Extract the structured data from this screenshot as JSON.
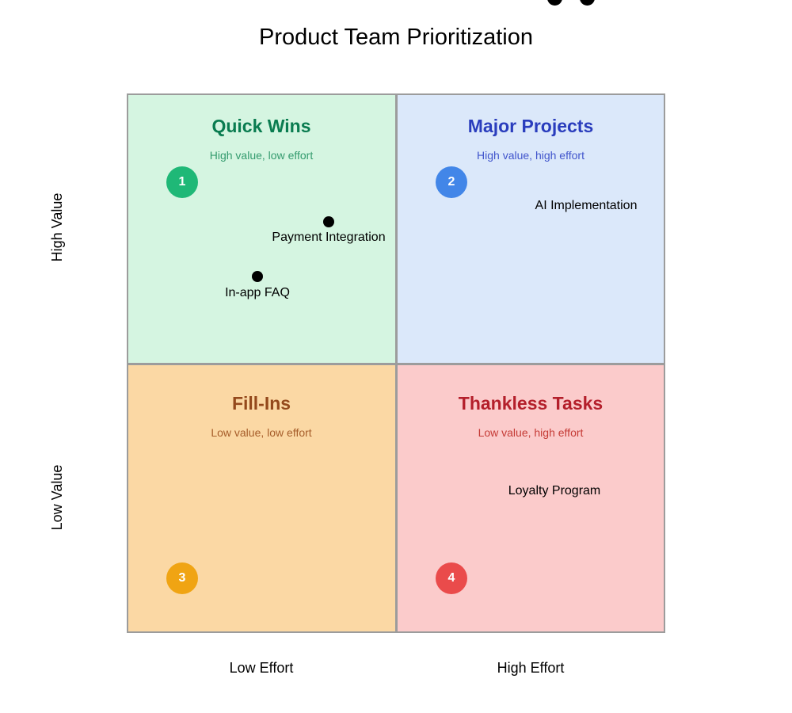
{
  "page": {
    "title": "Product Team Prioritization"
  },
  "axes": {
    "y_top": "High Value",
    "y_bottom": "Low Value",
    "x_left": "Low Effort",
    "x_right": "High Effort"
  },
  "quadrants": [
    {
      "title": "Quick Wins",
      "subtitle": "High value, low effort",
      "badge": "1",
      "bg": "#d5f5e1",
      "title_color": "#0a7c50",
      "subtitle_color": "#349b6e",
      "badge_color": "#1fb877"
    },
    {
      "title": "Major Projects",
      "subtitle": "High value, high effort",
      "badge": "2",
      "bg": "#dbe8fa",
      "title_color": "#2a3dbd",
      "subtitle_color": "#4155cc",
      "badge_color": "#4286e8"
    },
    {
      "title": "Fill-Ins",
      "subtitle": "Low value, low effort",
      "badge": "3",
      "bg": "#fbd8a4",
      "title_color": "#94491c",
      "subtitle_color": "#a65d2a",
      "badge_color": "#f0a413"
    },
    {
      "title": "Thankless Tasks",
      "subtitle": "Low value, high effort",
      "badge": "4",
      "bg": "#fbcbcb",
      "title_color": "#b41f2b",
      "subtitle_color": "#c53b36",
      "badge_color": "#ea4b4b"
    }
  ],
  "points": [
    {
      "label": "Payment Integration"
    },
    {
      "label": "In-app FAQ"
    }
  ],
  "floating_labels": [
    {
      "label": "AI Implementation"
    },
    {
      "label": "Loyalty Program"
    }
  ],
  "colors": {
    "grid_line": "#9c9c9c",
    "point": "#000000",
    "background": "#ffffff",
    "text": "#000000"
  },
  "chart_data": {
    "type": "scatter",
    "subtype": "quadrant-chart",
    "title": "Product Team Prioritization",
    "xlabel_left": "Low Effort",
    "xlabel_right": "High Effort",
    "ylabel_top": "High Value",
    "ylabel_bottom": "Low Value",
    "x_range": [
      0,
      1
    ],
    "y_range": [
      0,
      1
    ],
    "grid": false,
    "quadrant_labels": [
      {
        "position": "top-left",
        "title": "Quick Wins",
        "subtitle": "High value, low effort",
        "priority": 1
      },
      {
        "position": "top-right",
        "title": "Major Projects",
        "subtitle": "High value, high effort",
        "priority": 2
      },
      {
        "position": "bottom-left",
        "title": "Fill-Ins",
        "subtitle": "Low value, low effort",
        "priority": 3
      },
      {
        "position": "bottom-right",
        "title": "Thankless Tasks",
        "subtitle": "Low value, high effort",
        "priority": 4
      }
    ],
    "points": [
      {
        "name": "Payment Integration",
        "effort": 0.38,
        "value": 0.76,
        "quadrant": "Quick Wins",
        "dot_visible": true
      },
      {
        "name": "In-app FAQ",
        "effort": 0.24,
        "value": 0.66,
        "quadrant": "Quick Wins",
        "dot_visible": true
      },
      {
        "name": "AI Implementation",
        "effort": 0.85,
        "value": null,
        "quadrant": "Major Projects",
        "dot_visible": false,
        "note": "dot rendered clipped at top edge of image"
      },
      {
        "name": "Loyalty Program",
        "effort": 0.79,
        "value": null,
        "quadrant": "Thankless Tasks",
        "dot_visible": false,
        "note": "dot rendered clipped at top edge of image"
      }
    ]
  }
}
